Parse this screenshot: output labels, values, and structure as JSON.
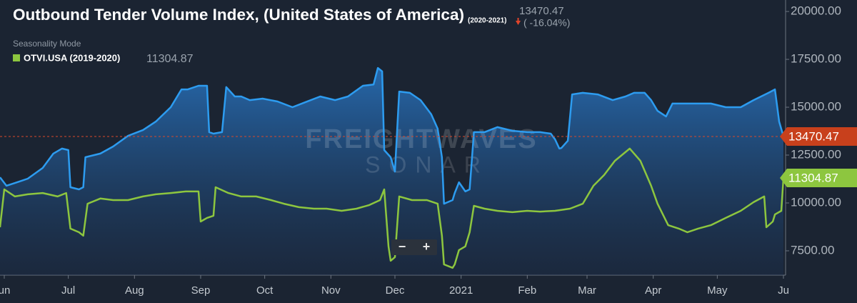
{
  "chart_data": {
    "type": "area-line",
    "title": "Outbound Tender Volume Index, (United States of America)",
    "title_period": "(2020-2021)",
    "current_value": 13470.47,
    "change_label": "( -16.04%)",
    "mode": "Seasonality Mode",
    "comparison_value": 11304.87,
    "watermark": [
      "FREIGHTWAVES",
      "SONAR"
    ],
    "zoom": [
      "−",
      "+"
    ],
    "xlim": [
      -2,
      366
    ],
    "xticks": [
      {
        "value": 0,
        "label": "un"
      },
      {
        "value": 30,
        "label": "Jul"
      },
      {
        "value": 61,
        "label": "Aug"
      },
      {
        "value": 92,
        "label": "Sep"
      },
      {
        "value": 122,
        "label": "Oct"
      },
      {
        "value": 153,
        "label": "Nov"
      },
      {
        "value": 183,
        "label": "Dec"
      },
      {
        "value": 214,
        "label": "2021"
      },
      {
        "value": 245,
        "label": "Feb"
      },
      {
        "value": 273,
        "label": "Mar"
      },
      {
        "value": 304,
        "label": "Apr"
      },
      {
        "value": 334,
        "label": "May"
      },
      {
        "value": 365,
        "label": "Ju"
      }
    ],
    "ylim": [
      6230,
      20600
    ],
    "yticks": [
      {
        "value": 7500,
        "label": "7500.00"
      },
      {
        "value": 10000,
        "label": "10000.00"
      },
      {
        "value": 12500,
        "label": "12500.00"
      },
      {
        "value": 15000,
        "label": "15000.00"
      },
      {
        "value": 17500,
        "label": "17500.00"
      },
      {
        "value": 20000,
        "label": "20000.00"
      }
    ],
    "series": [
      {
        "color": "#2d9cf0",
        "fill": true,
        "x": [
          -2,
          1,
          6,
          11,
          18,
          23,
          27,
          30,
          31,
          35,
          37,
          38,
          45,
          51,
          58,
          65,
          71,
          78,
          83,
          86,
          91,
          95,
          96,
          98,
          102,
          104,
          108,
          111,
          115,
          121,
          128,
          135,
          141,
          148,
          155,
          161,
          168,
          173,
          175,
          177,
          178,
          181,
          183,
          185,
          190,
          195,
          200,
          203,
          205,
          206,
          210,
          211,
          213,
          216,
          218,
          220,
          225,
          231,
          238,
          245,
          251,
          256,
          258,
          260,
          261,
          264,
          266,
          271,
          278,
          285,
          291,
          295,
          300,
          303,
          306,
          310,
          313,
          318,
          325,
          331,
          338,
          345,
          351,
          358,
          361,
          363,
          365
        ],
        "values": [
          11340,
          10900,
          11080,
          11270,
          11830,
          12580,
          12840,
          12760,
          10820,
          10710,
          10820,
          12390,
          12580,
          12950,
          13510,
          13810,
          14250,
          15000,
          15930,
          15930,
          16120,
          16120,
          13700,
          13620,
          13700,
          16050,
          15560,
          15560,
          15370,
          15450,
          15300,
          15000,
          15260,
          15560,
          15370,
          15560,
          16120,
          16190,
          17050,
          16870,
          12760,
          12390,
          11640,
          15820,
          15750,
          15370,
          14630,
          13880,
          12390,
          9960,
          10150,
          10520,
          11080,
          10600,
          10710,
          13700,
          13700,
          13960,
          13770,
          13700,
          13700,
          13620,
          13320,
          12840,
          12870,
          13250,
          15670,
          15750,
          15670,
          15370,
          15560,
          15750,
          15750,
          15370,
          14810,
          14520,
          15190,
          15190,
          15190,
          15190,
          15000,
          15000,
          15370,
          15750,
          15930,
          14250,
          13470
        ]
      },
      {
        "name": "OTVI.USA (2019-2020)",
        "color": "#8dc63f",
        "fill": false,
        "x": [
          -2,
          0,
          5,
          11,
          18,
          25,
          29,
          31,
          35,
          37,
          39,
          45,
          51,
          58,
          65,
          71,
          78,
          85,
          91,
          92,
          95,
          98,
          99,
          105,
          111,
          118,
          125,
          131,
          138,
          145,
          151,
          158,
          165,
          171,
          176,
          178,
          180,
          181,
          183,
          185,
          191,
          198,
          203,
          205,
          206,
          210,
          211,
          213,
          216,
          218,
          220,
          225,
          231,
          238,
          245,
          251,
          258,
          265,
          271,
          276,
          281,
          286,
          293,
          298,
          303,
          306,
          311,
          316,
          320,
          325,
          331,
          338,
          345,
          351,
          356,
          357,
          360,
          361,
          364,
          365
        ],
        "values": [
          8730,
          10710,
          10340,
          10450,
          10520,
          10340,
          10520,
          8660,
          8470,
          8290,
          9960,
          10230,
          10150,
          10150,
          10340,
          10450,
          10520,
          10600,
          10600,
          9030,
          9220,
          9330,
          10820,
          10520,
          10340,
          10340,
          10150,
          9960,
          9780,
          9700,
          9700,
          9590,
          9700,
          9890,
          10150,
          10710,
          7730,
          6980,
          7170,
          10340,
          10150,
          10150,
          9960,
          8290,
          6790,
          6610,
          6790,
          7540,
          7730,
          8470,
          9850,
          9700,
          9590,
          9520,
          9590,
          9550,
          9590,
          9700,
          9960,
          10900,
          11460,
          12200,
          12840,
          12200,
          10900,
          9960,
          8840,
          8660,
          8470,
          8660,
          8840,
          9220,
          9590,
          10040,
          10340,
          8730,
          9030,
          9400,
          9590,
          11300
        ]
      }
    ],
    "reference_line_color": "#d9482b",
    "tag_colors": [
      "#c8401c",
      "#8dc63f"
    ]
  }
}
